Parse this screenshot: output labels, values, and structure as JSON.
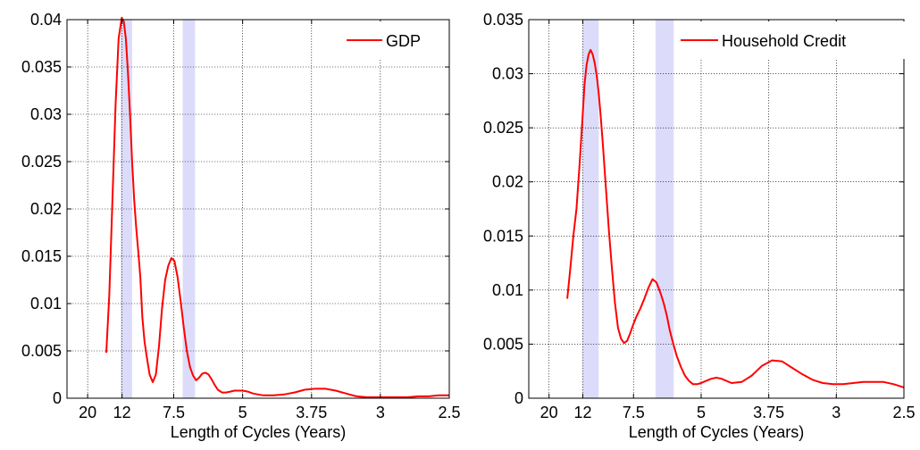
{
  "colors": {
    "series": "#ff0000",
    "band": "#dcdcfa",
    "grid": "#000000",
    "background": "#ffffff"
  },
  "chart_data": [
    {
      "type": "line",
      "title": "",
      "xlabel": "Length of Cycles (Years)",
      "ylabel": "",
      "x_unit": "frequency (1/years); tick labels show cycle length in years",
      "xlim": [
        0.03,
        0.4
      ],
      "ylim": [
        0,
        0.04
      ],
      "grid": true,
      "legend_position": "top-right",
      "x_ticks": [
        {
          "label": "20",
          "freq": 0.05
        },
        {
          "label": "12",
          "freq": 0.0833
        },
        {
          "label": "7.5",
          "freq": 0.1333
        },
        {
          "label": "5",
          "freq": 0.2
        },
        {
          "label": "3.75",
          "freq": 0.2667
        },
        {
          "label": "3",
          "freq": 0.3333
        },
        {
          "label": "2.5",
          "freq": 0.4
        }
      ],
      "y_ticks": [
        "0",
        "0.005",
        "0.01",
        "0.015",
        "0.02",
        "0.025",
        "0.03",
        "0.035",
        "0.04"
      ],
      "y_tick_values": [
        0,
        0.005,
        0.01,
        0.015,
        0.02,
        0.025,
        0.03,
        0.035,
        0.04
      ],
      "shaded_bands": [
        [
          0.082,
          0.093
        ],
        [
          0.142,
          0.154
        ]
      ],
      "series": [
        {
          "name": "GDP",
          "x": [
            0.068,
            0.071,
            0.074,
            0.077,
            0.08,
            0.083,
            0.085,
            0.087,
            0.089,
            0.091,
            0.093,
            0.095,
            0.097,
            0.099,
            0.101,
            0.103,
            0.105,
            0.107,
            0.11,
            0.113,
            0.116,
            0.119,
            0.122,
            0.125,
            0.128,
            0.131,
            0.134,
            0.137,
            0.14,
            0.143,
            0.146,
            0.149,
            0.152,
            0.155,
            0.158,
            0.161,
            0.164,
            0.167,
            0.17,
            0.173,
            0.176,
            0.18,
            0.184,
            0.188,
            0.192,
            0.196,
            0.2,
            0.205,
            0.21,
            0.215,
            0.22,
            0.225,
            0.23,
            0.24,
            0.25,
            0.26,
            0.27,
            0.28,
            0.29,
            0.3,
            0.31,
            0.32,
            0.33,
            0.34,
            0.35,
            0.36,
            0.37,
            0.38,
            0.39,
            0.4
          ],
          "values": [
            0.0048,
            0.011,
            0.021,
            0.031,
            0.038,
            0.0402,
            0.0398,
            0.038,
            0.0345,
            0.03,
            0.025,
            0.021,
            0.018,
            0.0155,
            0.0128,
            0.0085,
            0.006,
            0.0045,
            0.0025,
            0.0017,
            0.0025,
            0.0055,
            0.0095,
            0.0125,
            0.014,
            0.0148,
            0.0145,
            0.0128,
            0.0103,
            0.0075,
            0.005,
            0.0033,
            0.0024,
            0.0019,
            0.0022,
            0.0026,
            0.0027,
            0.0025,
            0.002,
            0.0014,
            0.0009,
            0.0006,
            0.0006,
            0.0007,
            0.0008,
            0.0008,
            0.0008,
            0.0007,
            0.0005,
            0.0004,
            0.0003,
            0.0003,
            0.0003,
            0.0004,
            0.0006,
            0.0009,
            0.001,
            0.001,
            0.0008,
            0.0005,
            0.0002,
            0.0001,
            0.0001,
            0.0001,
            0.0001,
            0.0001,
            0.0002,
            0.0002,
            0.0003,
            0.0003
          ]
        }
      ]
    },
    {
      "type": "line",
      "title": "",
      "xlabel": "Length of Cycles (Years)",
      "ylabel": "",
      "x_unit": "frequency (1/years); tick labels show cycle length in years",
      "xlim": [
        0.03,
        0.4
      ],
      "ylim": [
        0,
        0.035
      ],
      "grid": true,
      "legend_position": "top-right",
      "x_ticks": [
        {
          "label": "20",
          "freq": 0.05
        },
        {
          "label": "12",
          "freq": 0.0833
        },
        {
          "label": "7.5",
          "freq": 0.1333
        },
        {
          "label": "5",
          "freq": 0.2
        },
        {
          "label": "3.75",
          "freq": 0.2667
        },
        {
          "label": "3",
          "freq": 0.3333
        },
        {
          "label": "2.5",
          "freq": 0.4
        }
      ],
      "y_ticks": [
        "0",
        "0.005",
        "0.01",
        "0.015",
        "0.02",
        "0.025",
        "0.03",
        "0.035"
      ],
      "y_tick_values": [
        0,
        0.005,
        0.01,
        0.015,
        0.02,
        0.025,
        0.03,
        0.035
      ],
      "shaded_bands": [
        [
          0.083,
          0.099
        ],
        [
          0.155,
          0.173
        ]
      ],
      "series": [
        {
          "name": "Household Credit",
          "x": [
            0.068,
            0.071,
            0.074,
            0.077,
            0.08,
            0.083,
            0.085,
            0.087,
            0.089,
            0.091,
            0.093,
            0.095,
            0.097,
            0.099,
            0.101,
            0.103,
            0.106,
            0.109,
            0.112,
            0.115,
            0.118,
            0.121,
            0.124,
            0.127,
            0.13,
            0.133,
            0.136,
            0.14,
            0.144,
            0.148,
            0.152,
            0.156,
            0.16,
            0.163,
            0.166,
            0.169,
            0.172,
            0.176,
            0.18,
            0.184,
            0.188,
            0.192,
            0.196,
            0.2,
            0.205,
            0.21,
            0.215,
            0.22,
            0.23,
            0.24,
            0.25,
            0.26,
            0.27,
            0.28,
            0.29,
            0.3,
            0.31,
            0.32,
            0.33,
            0.34,
            0.35,
            0.36,
            0.37,
            0.38,
            0.39,
            0.4
          ],
          "values": [
            0.0092,
            0.012,
            0.015,
            0.0175,
            0.0215,
            0.026,
            0.029,
            0.0308,
            0.0318,
            0.0322,
            0.0318,
            0.031,
            0.0298,
            0.0282,
            0.026,
            0.0235,
            0.0195,
            0.0155,
            0.012,
            0.0088,
            0.0065,
            0.0055,
            0.0051,
            0.0053,
            0.006,
            0.0068,
            0.0075,
            0.0083,
            0.0092,
            0.0102,
            0.011,
            0.0107,
            0.0097,
            0.0088,
            0.0077,
            0.0063,
            0.0052,
            0.0039,
            0.0029,
            0.0021,
            0.0016,
            0.0013,
            0.0013,
            0.0014,
            0.0016,
            0.0018,
            0.0019,
            0.0018,
            0.0014,
            0.0015,
            0.0021,
            0.003,
            0.0035,
            0.0034,
            0.0028,
            0.0022,
            0.0017,
            0.0014,
            0.0013,
            0.0013,
            0.0014,
            0.0015,
            0.0015,
            0.0015,
            0.0013,
            0.001
          ]
        }
      ]
    }
  ]
}
